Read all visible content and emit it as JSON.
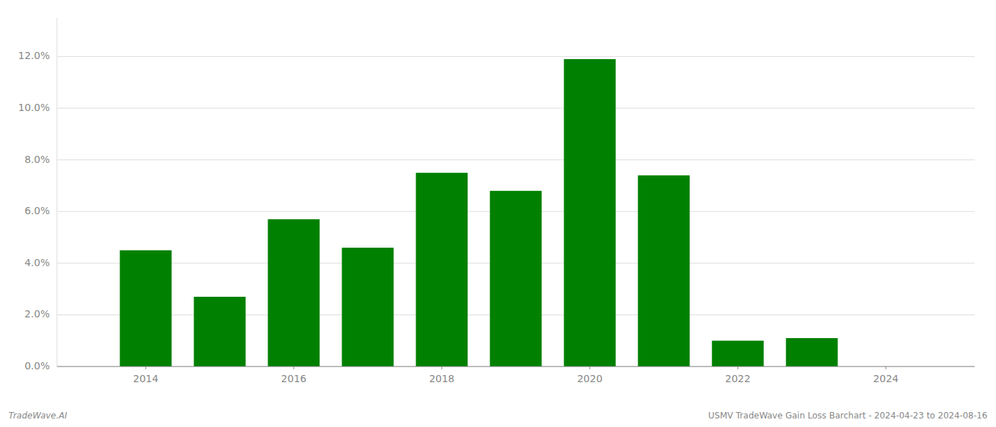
{
  "chart_data": {
    "type": "bar",
    "x": [
      2014,
      2015,
      2016,
      2017,
      2018,
      2019,
      2020,
      2021,
      2022,
      2023,
      2024
    ],
    "values": [
      0.045,
      0.027,
      0.057,
      0.046,
      0.075,
      0.068,
      0.119,
      0.074,
      0.01,
      0.011,
      0.0
    ],
    "color": "#008000",
    "xlim": [
      2012.8,
      2025.2
    ],
    "xticks": [
      2014,
      2016,
      2018,
      2020,
      2022,
      2024
    ],
    "ylim": [
      0,
      0.135
    ],
    "yticks": [
      {
        "value": 0.0,
        "label": "0.0%"
      },
      {
        "value": 0.02,
        "label": "2.0%"
      },
      {
        "value": 0.04,
        "label": "4.0%"
      },
      {
        "value": 0.06,
        "label": "6.0%"
      },
      {
        "value": 0.08,
        "label": "8.0%"
      },
      {
        "value": 0.1,
        "label": "10.0%"
      },
      {
        "value": 0.12,
        "label": "12.0%"
      }
    ],
    "grid": true,
    "annotations": [
      "TradeWave.AI",
      "USMV TradeWave Gain Loss Barchart - 2024-04-23 to 2024-08-16"
    ]
  }
}
